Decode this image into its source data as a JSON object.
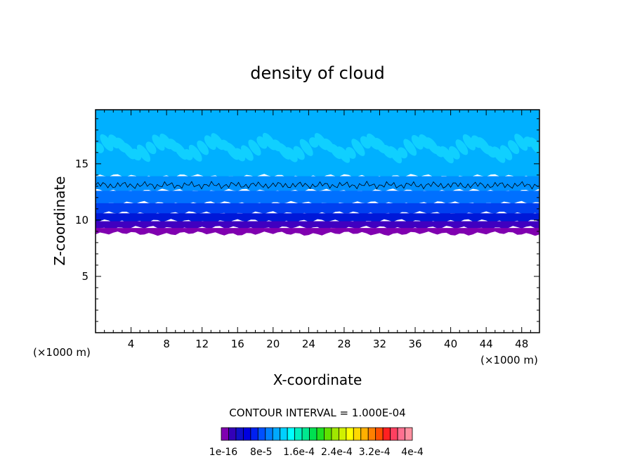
{
  "chart_data": {
    "type": "heatmap",
    "title": "density of cloud",
    "xlabel": "X-coordinate",
    "ylabel": "Z-coordinate",
    "x_unit": "(×1000 m)",
    "y_unit": "(×1000 m)",
    "xlim": [
      0,
      50
    ],
    "ylim": [
      0,
      19.8
    ],
    "x_ticks": [
      4,
      8,
      12,
      16,
      20,
      24,
      28,
      32,
      36,
      40,
      44,
      48
    ],
    "y_ticks": [
      5,
      10,
      15
    ],
    "contour_interval_label": "CONTOUR INTERVAL = 1.000E-04",
    "colorbar": {
      "labels": [
        "1e-16",
        "8e-5",
        "1.6e-4",
        "2.4e-4",
        "3.2e-4",
        "4e-4"
      ],
      "colors": [
        "#8000b0",
        "#3300b8",
        "#1010c8",
        "#0000e0",
        "#0020f0",
        "#0050ff",
        "#0080ff",
        "#00a8ff",
        "#00d0ff",
        "#00ffff",
        "#00f0c0",
        "#00e890",
        "#00e050",
        "#20e020",
        "#60e000",
        "#a0e800",
        "#d0f000",
        "#ffff00",
        "#ffd800",
        "#ffb000",
        "#ff8000",
        "#ff5000",
        "#ff2020",
        "#ff4060",
        "#ff7090",
        "#ff90a0"
      ]
    },
    "layers": [
      {
        "z_bottom": 13.9,
        "z_top": 19.8,
        "color": "#00b0ff"
      },
      {
        "z_bottom": 12.6,
        "z_top": 13.9,
        "color": "#0090ff"
      },
      {
        "z_bottom": 11.5,
        "z_top": 12.6,
        "color": "#0070ff"
      },
      {
        "z_bottom": 10.6,
        "z_top": 11.5,
        "color": "#0040f0"
      },
      {
        "z_bottom": 9.9,
        "z_top": 10.6,
        "color": "#0018d8"
      },
      {
        "z_bottom": 9.3,
        "z_top": 9.9,
        "color": "#4000c0"
      },
      {
        "z_bottom": 8.8,
        "z_top": 9.3,
        "color": "#8000b0"
      }
    ],
    "upper_band": {
      "z_bottom": 15.2,
      "z_top": 17.6,
      "color": "#10d0ff"
    },
    "contour_line_z": 13.1
  }
}
